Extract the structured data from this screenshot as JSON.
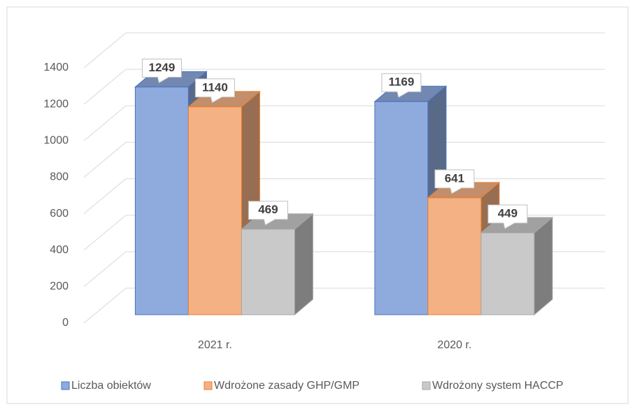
{
  "chart_data": {
    "type": "bar3d",
    "categories": [
      "2021 r.",
      "2020 r."
    ],
    "series": [
      {
        "name": "Liczba obiektów",
        "color": "#8faadc",
        "values": [
          1249,
          1169
        ]
      },
      {
        "name": "Wdrożone zasady GHP/GMP",
        "color": "#f4b183",
        "values": [
          1140,
          641
        ]
      },
      {
        "name": "Wdrożony system HACCP",
        "color": "#c9c9c9",
        "values": [
          469,
          449
        ]
      }
    ],
    "ylim": [
      0,
      1400
    ],
    "yticks": [
      0,
      200,
      400,
      600,
      800,
      1000,
      1200,
      1400
    ],
    "grid": true,
    "legend": "bottom"
  }
}
